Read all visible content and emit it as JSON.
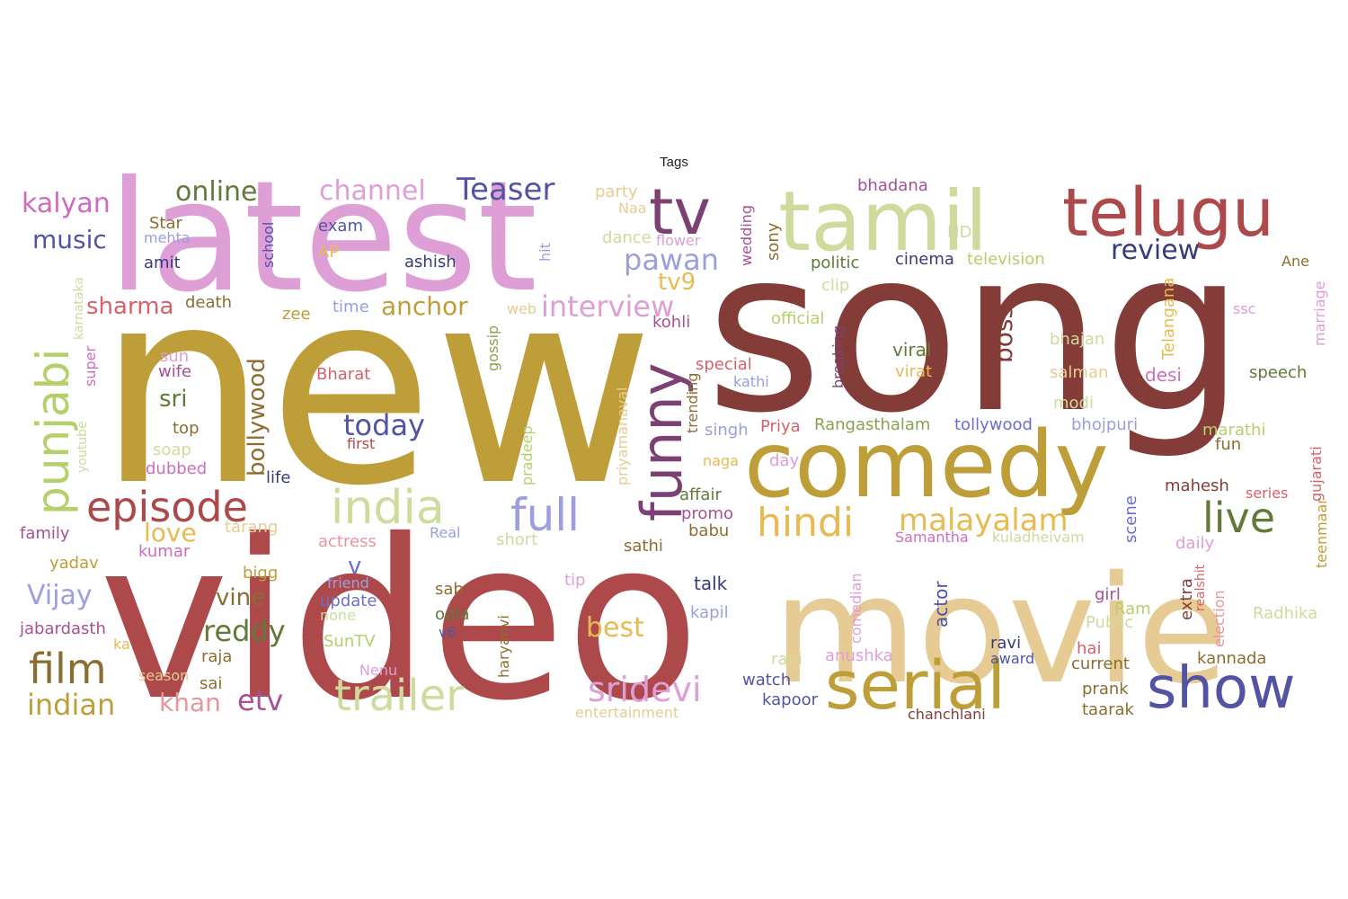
{
  "title": "Tags",
  "palette": {
    "dark_red": "#843c39",
    "red": "#ad494a",
    "rose": "#d6616b",
    "pink": "#e7969c",
    "orchid": "#de9ed6",
    "magenta": "#ce6dbd",
    "plum": "#a55194",
    "purple": "#7b4173",
    "olive_gold": "#bd9e39",
    "gold": "#e7ba52",
    "sand": "#e7cb94",
    "tan": "#8c6d31",
    "moss": "#637939",
    "green": "#8ca252",
    "light_green": "#b5cf6b",
    "pale_green": "#cedb9c",
    "navy": "#393b79",
    "indigo": "#5254a3",
    "periwinkle": "#6b6ecf",
    "lavender": "#9c9ede"
  },
  "words": [
    {
      "text": "new",
      "color": "olive_gold"
    },
    {
      "text": "song",
      "color": "dark_red"
    },
    {
      "text": "video",
      "color": "red"
    },
    {
      "text": "latest",
      "color": "orchid"
    },
    {
      "text": "movie",
      "color": "sand"
    },
    {
      "text": "tamil",
      "color": "pale_green"
    },
    {
      "text": "comedy",
      "color": "olive_gold"
    },
    {
      "text": "telugu",
      "color": "red"
    },
    {
      "text": "serial",
      "color": "olive_gold"
    },
    {
      "text": "funny",
      "color": "purple"
    },
    {
      "text": "show",
      "color": "indigo"
    },
    {
      "text": "punjabi",
      "color": "light_green"
    },
    {
      "text": "india",
      "color": "pale_green"
    },
    {
      "text": "trailer",
      "color": "pale_green"
    },
    {
      "text": "episode",
      "color": "red"
    },
    {
      "text": "film",
      "color": "tan"
    },
    {
      "text": "full",
      "color": "lavender"
    },
    {
      "text": "hindi",
      "color": "gold"
    },
    {
      "text": "tv",
      "color": "purple"
    },
    {
      "text": "live",
      "color": "moss"
    },
    {
      "text": "malayalam",
      "color": "gold"
    },
    {
      "text": "sridevi",
      "color": "orchid"
    },
    {
      "text": "Teaser",
      "color": "indigo"
    },
    {
      "text": "channel",
      "color": "orchid"
    },
    {
      "text": "online",
      "color": "moss"
    },
    {
      "text": "kalyan",
      "color": "magenta"
    },
    {
      "text": "music",
      "color": "indigo"
    },
    {
      "text": "review",
      "color": "navy"
    },
    {
      "text": "pawan",
      "color": "lavender"
    },
    {
      "text": "today",
      "color": "indigo"
    },
    {
      "text": "interview",
      "color": "orchid"
    },
    {
      "text": "anchor",
      "color": "olive_gold"
    },
    {
      "text": "sharma",
      "color": "rose"
    },
    {
      "text": "indian",
      "color": "olive_gold"
    },
    {
      "text": "etv",
      "color": "plum"
    },
    {
      "text": "bollywood",
      "color": "tan"
    },
    {
      "text": "reddy",
      "color": "moss"
    },
    {
      "text": "Vijay",
      "color": "lavender"
    },
    {
      "text": "best",
      "color": "gold"
    },
    {
      "text": "love",
      "color": "gold"
    },
    {
      "text": "khan",
      "color": "pink"
    },
    {
      "text": "vine",
      "color": "tan"
    },
    {
      "text": "sri",
      "color": "moss"
    },
    {
      "text": "boss",
      "color": "dark_red"
    },
    {
      "text": "tv9",
      "color": "gold"
    },
    {
      "text": "v",
      "color": "periwinkle"
    },
    {
      "text": "HD",
      "color": "pale_green"
    },
    {
      "text": "bhadana",
      "color": "plum"
    },
    {
      "text": "politic",
      "color": "moss"
    },
    {
      "text": "cinema",
      "color": "navy"
    },
    {
      "text": "television",
      "color": "light_green"
    },
    {
      "text": "official",
      "color": "light_green"
    },
    {
      "text": "viral",
      "color": "moss"
    },
    {
      "text": "virat",
      "color": "gold"
    },
    {
      "text": "clip",
      "color": "pale_green"
    },
    {
      "text": "Telangana",
      "color": "gold"
    },
    {
      "text": "desi",
      "color": "magenta"
    },
    {
      "text": "salman",
      "color": "sand"
    },
    {
      "text": "bhajan",
      "color": "pale_green"
    },
    {
      "text": "speech",
      "color": "moss"
    },
    {
      "text": "modi",
      "color": "pale_green"
    },
    {
      "text": "marathi",
      "color": "light_green"
    },
    {
      "text": "fun",
      "color": "tan"
    },
    {
      "text": "Rangasthalam",
      "color": "green"
    },
    {
      "text": "tollywood",
      "color": "periwinkle"
    },
    {
      "text": "bhojpuri",
      "color": "lavender"
    },
    {
      "text": "Priya",
      "color": "rose"
    },
    {
      "text": "singh",
      "color": "lavender"
    },
    {
      "text": "special",
      "color": "rose"
    },
    {
      "text": "kathi",
      "color": "lavender"
    },
    {
      "text": "kohli",
      "color": "plum"
    },
    {
      "text": "breaking",
      "color": "purple"
    },
    {
      "text": "trending",
      "color": "tan"
    },
    {
      "text": "day",
      "color": "orchid"
    },
    {
      "text": "naga",
      "color": "gold"
    },
    {
      "text": "affair",
      "color": "moss"
    },
    {
      "text": "promo",
      "color": "plum"
    },
    {
      "text": "babu",
      "color": "tan"
    },
    {
      "text": "sathi",
      "color": "tan"
    },
    {
      "text": "Real",
      "color": "lavender"
    },
    {
      "text": "short",
      "color": "pale_green"
    },
    {
      "text": "actress",
      "color": "pink"
    },
    {
      "text": "tarang",
      "color": "sand"
    },
    {
      "text": "family",
      "color": "plum"
    },
    {
      "text": "kumar",
      "color": "magenta"
    },
    {
      "text": "yadav",
      "color": "olive_gold"
    },
    {
      "text": "jabardasth",
      "color": "plum"
    },
    {
      "text": "ka",
      "color": "gold"
    },
    {
      "text": "season",
      "color": "sand"
    },
    {
      "text": "sai",
      "color": "tan"
    },
    {
      "text": "raja",
      "color": "tan"
    },
    {
      "text": "bigg",
      "color": "olive_gold"
    },
    {
      "text": "friend",
      "color": "lavender"
    },
    {
      "text": "update",
      "color": "periwinkle"
    },
    {
      "text": "none",
      "color": "pale_green"
    },
    {
      "text": "SunTV",
      "color": "light_green"
    },
    {
      "text": "Nenu",
      "color": "orchid"
    },
    {
      "text": "sab",
      "color": "tan"
    },
    {
      "text": "odia",
      "color": "moss"
    },
    {
      "text": "v6",
      "color": "indigo"
    },
    {
      "text": "haryanvi",
      "color": "tan"
    },
    {
      "text": "tip",
      "color": "orchid"
    },
    {
      "text": "talk",
      "color": "navy"
    },
    {
      "text": "kapil",
      "color": "lavender"
    },
    {
      "text": "watch",
      "color": "indigo"
    },
    {
      "text": "kapoor",
      "color": "indigo"
    },
    {
      "text": "entertainment",
      "color": "sand"
    },
    {
      "text": "rani",
      "color": "pale_green"
    },
    {
      "text": "anushka",
      "color": "orchid"
    },
    {
      "text": "comedian",
      "color": "orchid"
    },
    {
      "text": "actor",
      "color": "indigo"
    },
    {
      "text": "ravi",
      "color": "navy"
    },
    {
      "text": "award",
      "color": "indigo"
    },
    {
      "text": "chanchlani",
      "color": "dark_red"
    },
    {
      "text": "current",
      "color": "tan"
    },
    {
      "text": "prank",
      "color": "tan"
    },
    {
      "text": "taarak",
      "color": "tan"
    },
    {
      "text": "hai",
      "color": "rose"
    },
    {
      "text": "girl",
      "color": "plum"
    },
    {
      "text": "Ram",
      "color": "light_green"
    },
    {
      "text": "Public",
      "color": "pale_green"
    },
    {
      "text": "Samantha",
      "color": "magenta"
    },
    {
      "text": "kuladheivam",
      "color": "pale_green"
    },
    {
      "text": "scene",
      "color": "periwinkle"
    },
    {
      "text": "mahesh",
      "color": "dark_red"
    },
    {
      "text": "series",
      "color": "rose"
    },
    {
      "text": "daily",
      "color": "orchid"
    },
    {
      "text": "extra",
      "color": "dark_red"
    },
    {
      "text": "realshit",
      "color": "rose"
    },
    {
      "text": "election",
      "color": "pink"
    },
    {
      "text": "kannada",
      "color": "tan"
    },
    {
      "text": "Radhika",
      "color": "pale_green"
    },
    {
      "text": "teenmaar",
      "color": "olive_gold"
    },
    {
      "text": "gujarati",
      "color": "rose"
    },
    {
      "text": "marriage",
      "color": "orchid"
    },
    {
      "text": "ssc",
      "color": "orchid"
    },
    {
      "text": "Ane",
      "color": "tan"
    },
    {
      "text": "party",
      "color": "sand"
    },
    {
      "text": "Naa",
      "color": "sand"
    },
    {
      "text": "dance",
      "color": "pale_green"
    },
    {
      "text": "flower",
      "color": "orchid"
    },
    {
      "text": "hit",
      "color": "lavender"
    },
    {
      "text": "web",
      "color": "sand"
    },
    {
      "text": "wedding",
      "color": "plum"
    },
    {
      "text": "sony",
      "color": "tan"
    },
    {
      "text": "gossip",
      "color": "green"
    },
    {
      "text": "exam",
      "color": "indigo"
    },
    {
      "text": "AP",
      "color": "gold"
    },
    {
      "text": "ashish",
      "color": "navy"
    },
    {
      "text": "school",
      "color": "indigo"
    },
    {
      "text": "Star",
      "color": "tan"
    },
    {
      "text": "mehta",
      "color": "lavender"
    },
    {
      "text": "amit",
      "color": "navy"
    },
    {
      "text": "death",
      "color": "tan"
    },
    {
      "text": "time",
      "color": "lavender"
    },
    {
      "text": "zee",
      "color": "olive_gold"
    },
    {
      "text": "karnataka",
      "color": "pale_green"
    },
    {
      "text": "sun",
      "color": "orchid"
    },
    {
      "text": "wife",
      "color": "plum"
    },
    {
      "text": "super",
      "color": "magenta"
    },
    {
      "text": "Bharat",
      "color": "rose"
    },
    {
      "text": "top",
      "color": "tan"
    },
    {
      "text": "first",
      "color": "red"
    },
    {
      "text": "soap",
      "color": "pale_green"
    },
    {
      "text": "youtube",
      "color": "pale_green"
    },
    {
      "text": "dubbed",
      "color": "magenta"
    },
    {
      "text": "life",
      "color": "navy"
    },
    {
      "text": "pradeep",
      "color": "light_green"
    },
    {
      "text": "priyamanaval",
      "color": "sand"
    }
  ]
}
